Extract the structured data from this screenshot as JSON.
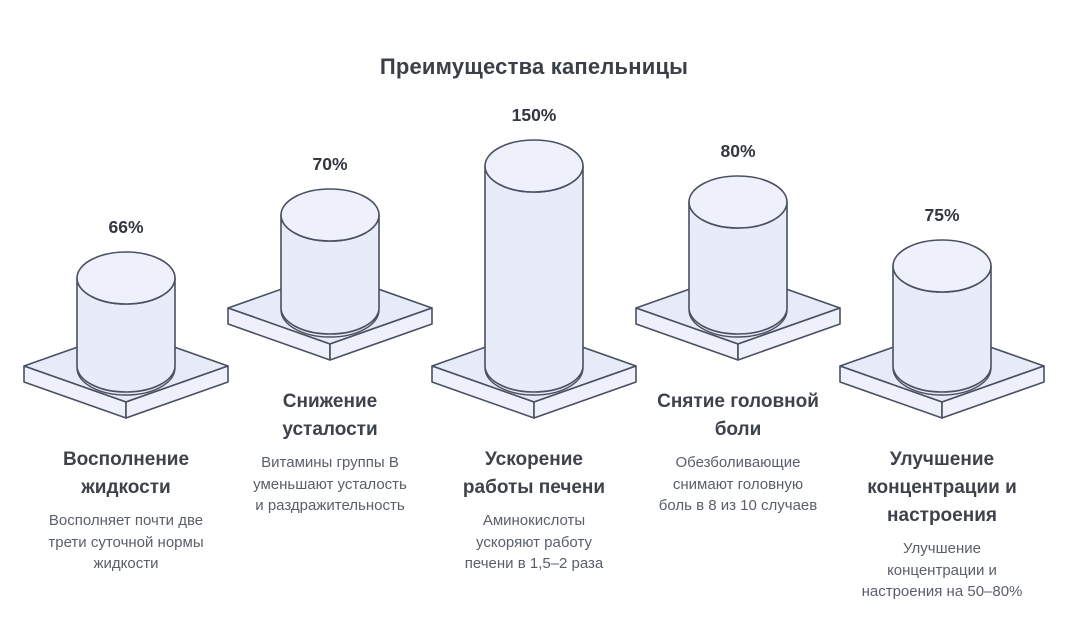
{
  "title": "Преимущества капельницы",
  "colors": {
    "background": "#ffffff",
    "outline": "#4a5061",
    "cylinder_body": "#e8ecf9",
    "cylinder_top": "#eef1fc",
    "platform_top": "#e7ebf8",
    "platform_side": "#eef1fb",
    "title_text": "#3b4046",
    "heading_text": "#3e434a",
    "description_text": "#5a6068"
  },
  "chart_data": {
    "type": "bar",
    "title": "Преимущества капельницы",
    "unit": "%",
    "legend": "none",
    "grid": false,
    "categories": [
      "Восполнение жидкости",
      "Снижение усталости",
      "Ускорение работы печени",
      "Снятие головной боли",
      "Улучшение концентрации и настроения"
    ],
    "values": [
      66,
      70,
      150,
      80,
      75
    ],
    "items": [
      {
        "value": 66,
        "value_label": "66%",
        "heading": "Восполнение\nжидкости",
        "description": "Восполняет почти две\nтрети суточной нормы\nжидкости"
      },
      {
        "value": 70,
        "value_label": "70%",
        "heading": "Снижение\nусталости",
        "description": "Витамины группы В\nуменьшают усталость\nи раздражительность"
      },
      {
        "value": 150,
        "value_label": "150%",
        "heading": "Ускорение\nработы печени",
        "description": "Аминокислоты\nускоряют работу\nпечени в 1,5–2 раза"
      },
      {
        "value": 80,
        "value_label": "80%",
        "heading": "Снятие головной\nболи",
        "description": "Обезболивающие\nснимают головную\nболь в 8 из 10 случаев"
      },
      {
        "value": 75,
        "value_label": "75%",
        "heading": "Улучшение\nконцентрации и\nнастроения",
        "description": "Улучшение\nконцентрации и\nнастроения на 50–80%"
      }
    ]
  }
}
